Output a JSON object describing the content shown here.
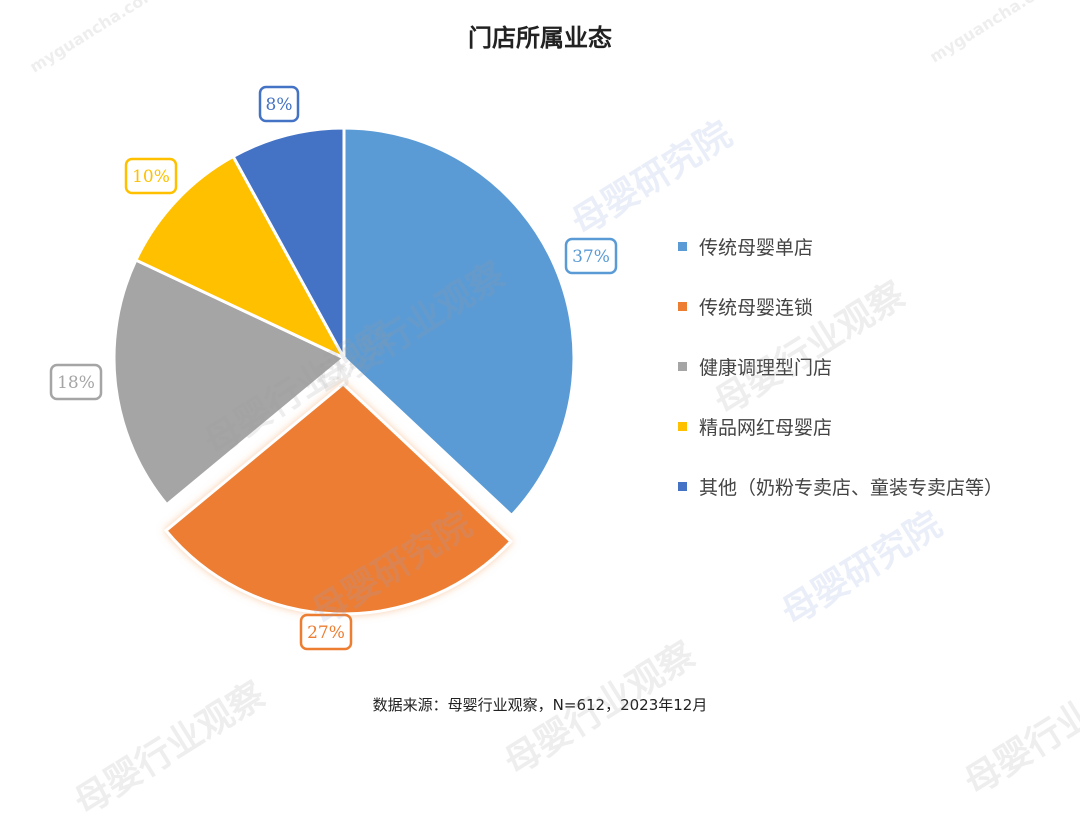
{
  "title": "门店所属业态",
  "source": "数据来源：母婴行业观察，N=612，2023年12月",
  "watermarks": [
    "母婴研究院",
    "母婴行业观察",
    "观",
    "myguancha.com"
  ],
  "chart_data": {
    "type": "pie",
    "title": "门店所属业态",
    "exploded_slice": "传统母婴连锁",
    "slices": [
      {
        "name": "传统母婴单店",
        "value": 37,
        "label": "37%",
        "color": "#5B9BD5"
      },
      {
        "name": "传统母婴连锁",
        "value": 27,
        "label": "27%",
        "color": "#ED7D31"
      },
      {
        "name": "健康调理型门店",
        "value": 18,
        "label": "18%",
        "color": "#A5A5A5"
      },
      {
        "name": "精品网红母婴店",
        "value": 10,
        "label": "10%",
        "color": "#FFC000"
      },
      {
        "name": "其他（奶粉专卖店、童装专卖店等）",
        "value": 8,
        "label": "8%",
        "color": "#4472C4"
      }
    ],
    "legend_position": "right"
  }
}
